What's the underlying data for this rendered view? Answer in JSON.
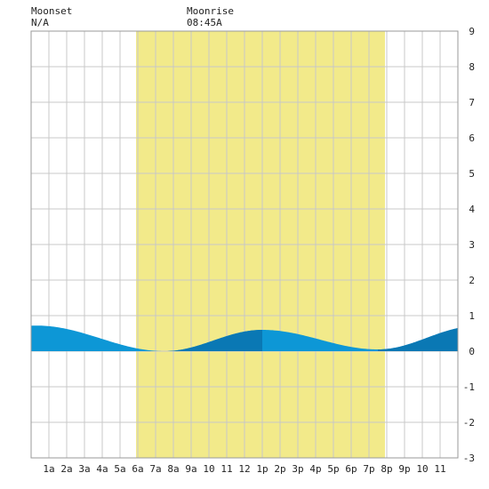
{
  "header": {
    "moonset_label": "Moonset",
    "moonset_time": "N/A",
    "moonrise_label": "Moonrise",
    "moonrise_time": "08:45A"
  },
  "colors": {
    "daylight": "#f2ea8a",
    "tide_fill": "#0d97d6",
    "tide_fill_dark": "#0a78b4",
    "grid": "#c8c8c8",
    "border": "#9a9a9a",
    "background": "#ffffff"
  },
  "chart_data": {
    "type": "area",
    "title": "",
    "xlabel": "",
    "ylabel": "",
    "xlim": [
      0,
      24
    ],
    "ylim": [
      -3,
      9
    ],
    "y_ticks": [
      "-3",
      "-2",
      "-1",
      "0",
      "1",
      "2",
      "3",
      "4",
      "5",
      "6",
      "7",
      "8",
      "9"
    ],
    "x_ticks": [
      "1a",
      "2a",
      "3a",
      "4a",
      "5a",
      "6a",
      "7a",
      "8a",
      "9a",
      "10",
      "11",
      "12",
      "1p",
      "2p",
      "3p",
      "4p",
      "5p",
      "6p",
      "7p",
      "8p",
      "9p",
      "10",
      "11"
    ],
    "grid": true,
    "daylight_hours": [
      5.9,
      19.9
    ],
    "tide_extremes": [
      {
        "hour": 0.3,
        "height": 0.72
      },
      {
        "hour": 7.5,
        "height": 0.0
      },
      {
        "hour": 13.0,
        "height": 0.6
      },
      {
        "hour": 19.5,
        "height": 0.05
      },
      {
        "hour": 25.0,
        "height": 0.7
      }
    ],
    "tide_dark_ranges": [
      [
        7.5,
        13.0
      ],
      [
        19.5,
        24
      ]
    ]
  }
}
